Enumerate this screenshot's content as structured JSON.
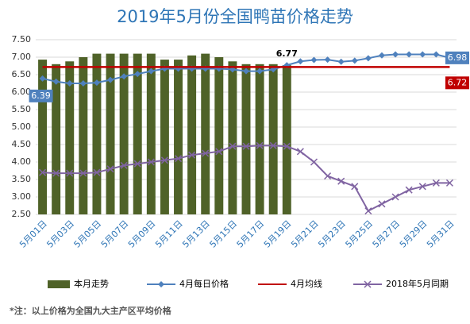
{
  "chart_data": {
    "type": "bar",
    "title": "2019年5月份全国鸭苗价格走势",
    "categories": [
      "5月01日",
      null,
      "5月03日",
      null,
      "5月05日",
      null,
      "5月07日",
      null,
      "5月09日",
      null,
      "5月11日",
      null,
      "5月13日",
      null,
      "5月15日",
      null,
      "5月17日",
      null,
      "5月19日",
      null,
      "5月21日",
      null,
      "5月23日",
      null,
      "5月25日",
      null,
      "5月27日",
      null,
      "5月29日",
      null,
      "5月31日"
    ],
    "ylim": [
      2.5,
      7.5
    ],
    "yticks": [
      {
        "value": 2.5,
        "label": "2.50"
      },
      {
        "value": 3,
        "label": "3.00"
      },
      {
        "value": 3.5,
        "label": "3.50"
      },
      {
        "value": 4,
        "label": "4.00"
      },
      {
        "value": 4.5,
        "label": "4.50"
      },
      {
        "value": 5,
        "label": "5.00"
      },
      {
        "value": 5.5,
        "label": "5.50"
      },
      {
        "value": 6,
        "label": "6.00"
      },
      {
        "value": 6.5,
        "label": "6.50"
      },
      {
        "value": 7,
        "label": "7.00"
      },
      {
        "value": 7.5,
        "label": "7.50"
      }
    ],
    "grid": true,
    "series": [
      {
        "name": "本月走势",
        "type": "bar",
        "color": "#4f6228",
        "values": [
          6.93,
          6.8,
          6.88,
          7.0,
          7.1,
          7.1,
          7.1,
          7.1,
          7.1,
          6.93,
          6.93,
          7.05,
          7.1,
          7.0,
          6.88,
          6.8,
          6.8,
          6.8,
          6.77,
          null,
          null,
          null,
          null,
          null,
          null,
          null,
          null,
          null,
          null,
          null,
          null
        ],
        "value_labels": [
          null,
          null,
          null,
          null,
          null,
          null,
          null,
          null,
          null,
          null,
          null,
          null,
          null,
          null,
          null,
          null,
          null,
          null,
          "6.77",
          null,
          null,
          null,
          null,
          null,
          null,
          null,
          null,
          null,
          null,
          null,
          null
        ]
      },
      {
        "name": "4月每日价格",
        "type": "line",
        "marker": "diamond",
        "color": "#4f81bd",
        "values": [
          6.39,
          6.3,
          6.25,
          6.25,
          6.27,
          6.35,
          6.45,
          6.52,
          6.6,
          6.67,
          6.67,
          6.67,
          6.67,
          6.67,
          6.65,
          6.6,
          6.6,
          6.65,
          6.77,
          6.88,
          6.92,
          6.93,
          6.87,
          6.9,
          6.97,
          7.05,
          7.08,
          7.08,
          7.08,
          7.08,
          6.98
        ],
        "value_labels": [
          "6.39",
          null,
          null,
          null,
          null,
          null,
          null,
          null,
          null,
          null,
          null,
          null,
          null,
          null,
          null,
          null,
          null,
          null,
          null,
          null,
          null,
          null,
          null,
          null,
          null,
          null,
          null,
          null,
          null,
          null,
          "6.98"
        ]
      },
      {
        "name": "4月均线",
        "type": "line",
        "marker": "none",
        "color": "#c00000",
        "values": [
          6.72,
          6.72,
          6.72,
          6.72,
          6.72,
          6.72,
          6.72,
          6.72,
          6.72,
          6.72,
          6.72,
          6.72,
          6.72,
          6.72,
          6.72,
          6.72,
          6.72,
          6.72,
          6.72,
          6.72,
          6.72,
          6.72,
          6.72,
          6.72,
          6.72,
          6.72,
          6.72,
          6.72,
          6.72,
          6.72,
          6.72
        ],
        "value_labels": [
          null,
          null,
          null,
          null,
          null,
          null,
          null,
          null,
          null,
          null,
          null,
          null,
          null,
          null,
          null,
          null,
          null,
          null,
          null,
          null,
          null,
          null,
          null,
          null,
          null,
          null,
          null,
          null,
          null,
          null,
          "6.72"
        ]
      },
      {
        "name": "2018年5月同期",
        "type": "line",
        "marker": "x",
        "color": "#8064a2",
        "values": [
          3.7,
          3.68,
          3.68,
          3.68,
          3.7,
          3.8,
          3.9,
          3.95,
          4.0,
          4.05,
          4.1,
          4.2,
          4.25,
          4.3,
          4.45,
          4.45,
          4.47,
          4.47,
          4.45,
          4.3,
          4.0,
          3.6,
          3.45,
          3.3,
          2.6,
          2.8,
          3.0,
          3.2,
          3.3,
          3.4,
          3.4
        ]
      }
    ],
    "footnote": "*注：以上价格为全国九大主产区平均价格"
  }
}
